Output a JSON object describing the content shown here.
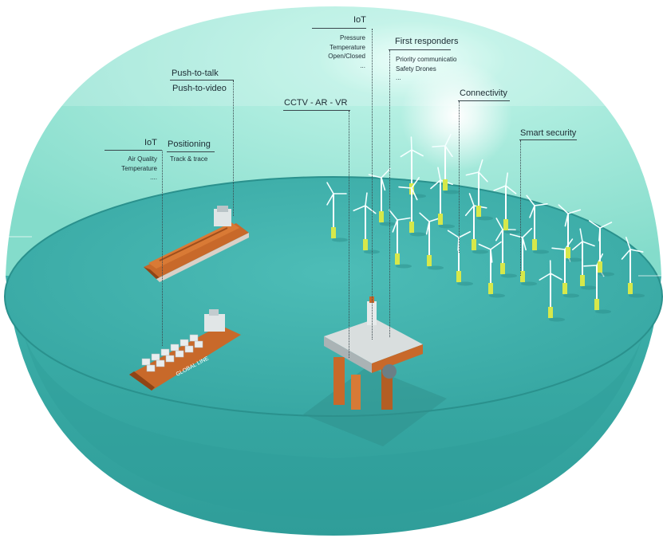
{
  "labels": {
    "iot_top": {
      "title": "IoT",
      "items": [
        "Pressure",
        "Temperature",
        "Open/Closed",
        "..."
      ]
    },
    "first_responders": {
      "title": "First responders",
      "items": [
        "Priority communicatio",
        "Safety Drones",
        "..."
      ]
    },
    "push_to_talk": {
      "title": "Push-to-talk",
      "secondary": "Push-to-video"
    },
    "cctv": {
      "title": "CCTV - AR - VR"
    },
    "connectivity": {
      "title": "Connectivity"
    },
    "smart_security": {
      "title": "Smart security"
    },
    "iot_left": {
      "title": "IoT",
      "items": [
        "Air Quality",
        "Temperature",
        "...."
      ]
    },
    "positioning": {
      "title": "Positioning",
      "items": [
        "Track & trace"
      ]
    }
  },
  "ship_text": "GLOBAL LINE",
  "colors": {
    "dome": "#8ee3d2",
    "dome_light": "#bff0e6",
    "sea": "#3fb3ad",
    "sea_dark": "#2b8f8c",
    "shell": "#3aa7a2",
    "hull": "#c8692a",
    "turbine_base": "#d8e84a"
  }
}
